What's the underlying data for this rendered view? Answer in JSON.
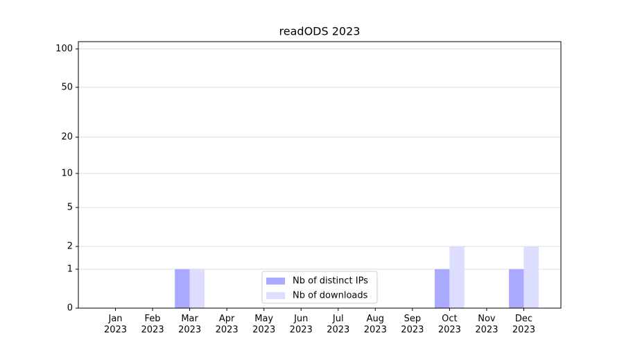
{
  "chart_data": {
    "type": "bar",
    "title": "readODS 2023",
    "categories": [
      "Jan\n2023",
      "Feb\n2023",
      "Mar\n2023",
      "Apr\n2023",
      "May\n2023",
      "Jun\n2023",
      "Jul\n2023",
      "Aug\n2023",
      "Sep\n2023",
      "Oct\n2023",
      "Nov\n2023",
      "Dec\n2023"
    ],
    "series": [
      {
        "name": "Nb of distinct IPs",
        "color": "#aaaaff",
        "values": [
          0,
          0,
          1,
          0,
          0,
          0,
          0,
          0,
          0,
          1,
          0,
          1
        ]
      },
      {
        "name": "Nb of downloads",
        "color": "#ddddff",
        "values": [
          0,
          0,
          1,
          0,
          0,
          0,
          0,
          0,
          0,
          2,
          0,
          2
        ]
      }
    ],
    "y_scale": "log1p",
    "ylim": [
      0,
      114
    ],
    "yticks": [
      0,
      1,
      2,
      5,
      10,
      20,
      50,
      100
    ],
    "grid": true,
    "legend": "lower center"
  }
}
